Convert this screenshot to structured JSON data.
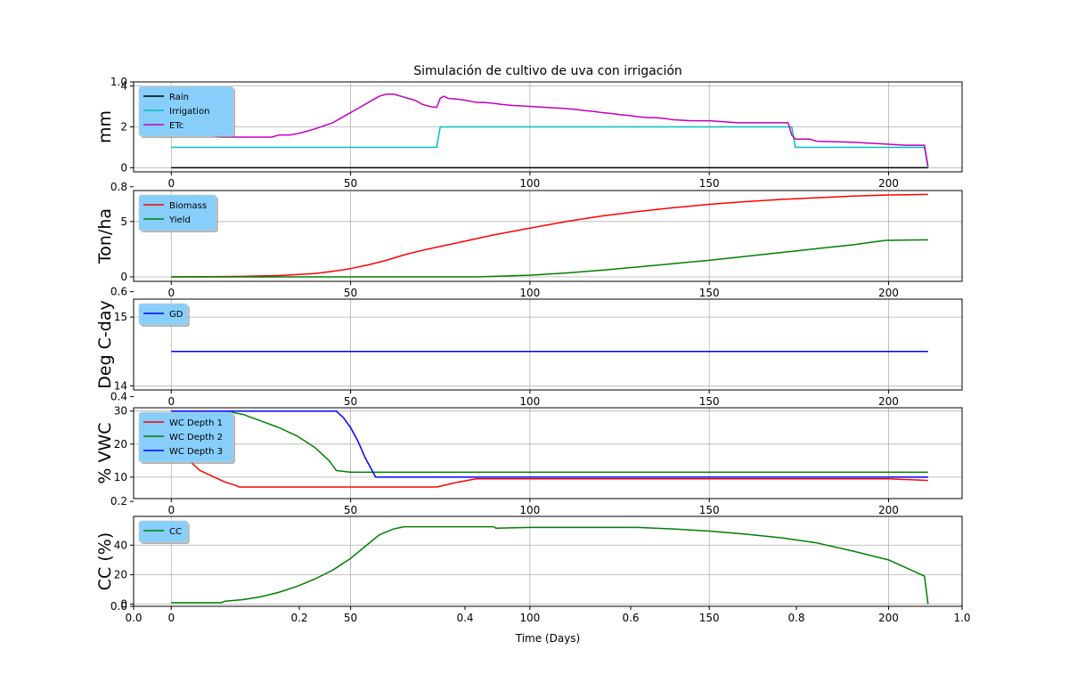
{
  "chart_data": {
    "type": "line",
    "title": "Simulación de cultivo de uva con irrigación",
    "xlabel": "Time (Days)",
    "background_axis": {
      "xlim": [
        0,
        1
      ],
      "ylim": [
        0,
        1
      ],
      "xticks": [
        "0.0",
        "0.2",
        "0.4",
        "0.6",
        "0.8",
        "1.0"
      ],
      "yticks": [
        "0.0",
        "0.2",
        "0.4",
        "0.6",
        "0.8",
        "1.0"
      ]
    },
    "panels": [
      {
        "name": "water",
        "ylabel": "mm",
        "xlim": [
          -10.5,
          220.5
        ],
        "ylim": [
          -0.2,
          4.2
        ],
        "xticks": [
          0,
          50,
          100,
          150,
          200
        ],
        "yticks": [
          0,
          2,
          4
        ],
        "grid": true,
        "legend": "top-left",
        "series": [
          {
            "name": "Rain",
            "color": "#000000",
            "x": [
              0,
              211
            ],
            "y": [
              0,
              0
            ]
          },
          {
            "name": "Irrigation",
            "color": "#00bfbf",
            "x": [
              0,
              74,
              75,
              173,
              174,
              210,
              211
            ],
            "y": [
              1,
              1,
              2,
              2,
              1,
              1,
              0
            ]
          },
          {
            "name": "ETc",
            "color": "#bf00bf",
            "x": [
              0,
              5,
              10,
              14,
              28,
              30,
              33,
              36,
              40,
              45,
              50,
              52,
              55,
              58,
              60,
              62,
              64,
              66,
              68,
              70,
              72,
              74,
              75,
              76,
              77,
              80,
              82,
              85,
              87,
              90,
              92,
              95,
              100,
              105,
              110,
              113,
              115,
              118,
              120,
              123,
              125,
              128,
              130,
              133,
              135,
              138,
              140,
              145,
              150,
              158,
              172,
              173,
              174,
              178,
              180,
              190,
              195,
              200,
              205,
              210,
              211
            ],
            "y": [
              2.0,
              1.9,
              1.6,
              1.5,
              1.5,
              1.6,
              1.6,
              1.7,
              1.9,
              2.2,
              2.7,
              2.9,
              3.2,
              3.5,
              3.6,
              3.6,
              3.5,
              3.4,
              3.3,
              3.1,
              3.0,
              2.95,
              3.4,
              3.5,
              3.4,
              3.35,
              3.3,
              3.2,
              3.2,
              3.15,
              3.1,
              3.05,
              3.0,
              2.95,
              2.9,
              2.85,
              2.8,
              2.75,
              2.7,
              2.65,
              2.6,
              2.55,
              2.5,
              2.45,
              2.45,
              2.4,
              2.35,
              2.3,
              2.3,
              2.2,
              2.2,
              1.6,
              1.4,
              1.4,
              1.3,
              1.25,
              1.2,
              1.15,
              1.1,
              1.1,
              0.05
            ]
          }
        ]
      },
      {
        "name": "biomass",
        "ylabel": "Ton/ha",
        "xlim": [
          -10.5,
          220.5
        ],
        "ylim": [
          -0.4,
          7.8
        ],
        "xticks": [
          0,
          50,
          100,
          150,
          200
        ],
        "yticks": [
          0,
          5
        ],
        "grid": true,
        "legend": "top-left",
        "series": [
          {
            "name": "Biomass",
            "color": "#ff0000",
            "x": [
              0,
              10,
              20,
              30,
              40,
              45,
              50,
              55,
              60,
              65,
              70,
              80,
              90,
              100,
              110,
              120,
              130,
              140,
              150,
              160,
              170,
              180,
              190,
              200,
              211
            ],
            "y": [
              0,
              0.02,
              0.05,
              0.12,
              0.3,
              0.5,
              0.75,
              1.1,
              1.5,
              2.0,
              2.4,
              3.1,
              3.8,
              4.4,
              5.0,
              5.5,
              5.9,
              6.25,
              6.55,
              6.8,
              7.0,
              7.15,
              7.3,
              7.4,
              7.45
            ]
          },
          {
            "name": "Yield",
            "color": "#008000",
            "x": [
              0,
              85,
              90,
              100,
              110,
              120,
              130,
              140,
              150,
              160,
              170,
              180,
              190,
              199,
              211
            ],
            "y": [
              0,
              0,
              0.05,
              0.15,
              0.35,
              0.6,
              0.9,
              1.2,
              1.5,
              1.85,
              2.2,
              2.55,
              2.9,
              3.3,
              3.35
            ]
          }
        ]
      },
      {
        "name": "gdd",
        "ylabel": "Deg C-day",
        "xlim": [
          -10.5,
          220.5
        ],
        "ylim": [
          13.94,
          15.26
        ],
        "xticks": [
          0,
          50,
          100,
          150,
          200
        ],
        "yticks": [
          14,
          15
        ],
        "grid": true,
        "legend": "top-left",
        "series": [
          {
            "name": "GD",
            "color": "#0000ff",
            "x": [
              0,
              211
            ],
            "y": [
              14.5,
              14.5
            ]
          }
        ]
      },
      {
        "name": "soil",
        "ylabel": "% VWC",
        "xlim": [
          -10.5,
          220.5
        ],
        "ylim": [
          3.5,
          31.0
        ],
        "xticks": [
          0,
          50,
          100,
          150,
          200
        ],
        "yticks": [
          10,
          20,
          30
        ],
        "grid": true,
        "legend": "top-left",
        "series": [
          {
            "name": "WC Depth 1",
            "color": "#ff0000",
            "x": [
              0,
              2,
              4,
              6,
              8,
              10,
              12,
              15,
              18,
              19,
              74,
              80,
              85,
              100,
              150,
              200,
              211
            ],
            "y": [
              25,
              21,
              17,
              14,
              12,
              11,
              10,
              8.5,
              7.5,
              7,
              7,
              8.5,
              9.5,
              9.5,
              9.5,
              9.5,
              9
            ]
          },
          {
            "name": "WC Depth 2",
            "color": "#008000",
            "x": [
              0,
              15,
              20,
              25,
              30,
              35,
              40,
              44,
              46,
              50,
              60,
              100,
              150,
              200,
              211
            ],
            "y": [
              30,
              30,
              29,
              27,
              25,
              22.5,
              19,
              15,
              12,
              11.5,
              11.5,
              11.5,
              11.5,
              11.5,
              11.5
            ]
          },
          {
            "name": "WC Depth 3",
            "color": "#0000ff",
            "x": [
              0,
              46,
              48,
              50,
              52,
              54,
              56,
              57,
              60,
              100,
              150,
              200,
              211
            ],
            "y": [
              30,
              30,
              28,
              25,
              21,
              16,
              12,
              10,
              10,
              10,
              10,
              10,
              10
            ]
          }
        ]
      },
      {
        "name": "canopy",
        "ylabel": "CC (%)",
        "xlim": [
          -10.5,
          220.5
        ],
        "ylim": [
          -1.5,
          59.5
        ],
        "xticks": [
          0,
          50,
          100,
          150,
          200
        ],
        "yticks": [
          0,
          20,
          40
        ],
        "grid": true,
        "legend": "top-left",
        "series": [
          {
            "name": "CC",
            "color": "#008000",
            "x": [
              0,
              14,
              15,
              20,
              25,
              30,
              35,
              40,
              45,
              50,
              55,
              58,
              62,
              65,
              70,
              90,
              90.5,
              100,
              130,
              140,
              150,
              160,
              170,
              180,
              190,
              200,
              210,
              211
            ],
            "y": [
              1,
              1,
              2,
              3,
              5,
              8,
              12,
              17,
              23,
              31,
              41,
              47,
              51,
              52.5,
              52.5,
              52.5,
              51.5,
              52,
              52,
              51,
              49.5,
              47.5,
              45,
              41.5,
              36,
              30,
              19,
              0
            ]
          }
        ]
      }
    ]
  }
}
